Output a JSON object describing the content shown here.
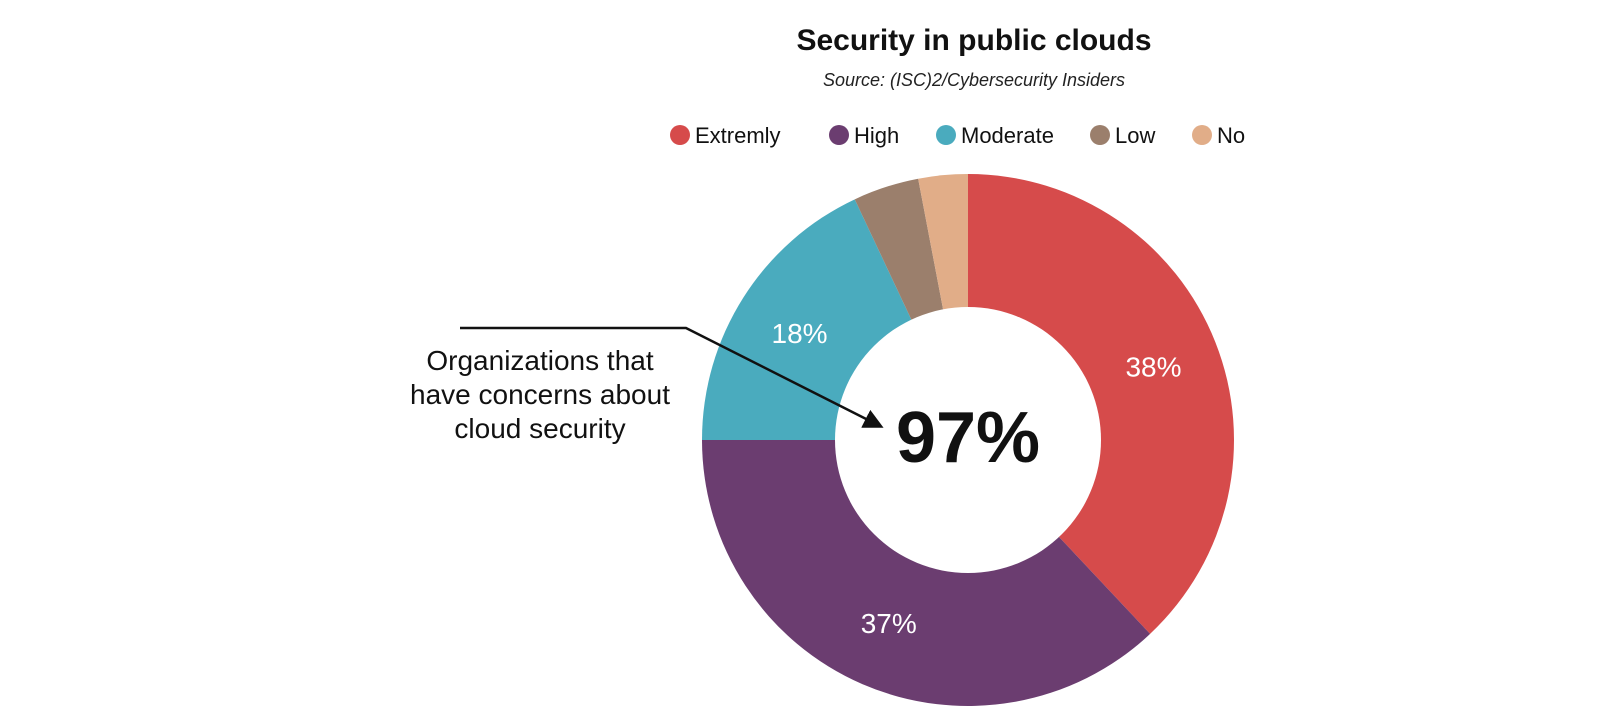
{
  "chart_data": {
    "type": "pie",
    "title": "Security in public clouds",
    "subtitle": "Source: (ISC)2/Cybersecurity Insiders",
    "legend_position": "top",
    "categories": [
      "Extremly",
      "High",
      "Moderate",
      "Low",
      "No"
    ],
    "values": [
      38,
      37,
      18,
      4,
      3
    ],
    "colors": [
      "#d64b4b",
      "#6b3d70",
      "#4aabbe",
      "#9b7f6c",
      "#e1ad88"
    ],
    "slice_labels": [
      "38%",
      "37%",
      "18%",
      "",
      ""
    ],
    "center_value": "97%",
    "annotation": [
      "Organizations that",
      "have concerns about",
      "cloud security"
    ]
  }
}
